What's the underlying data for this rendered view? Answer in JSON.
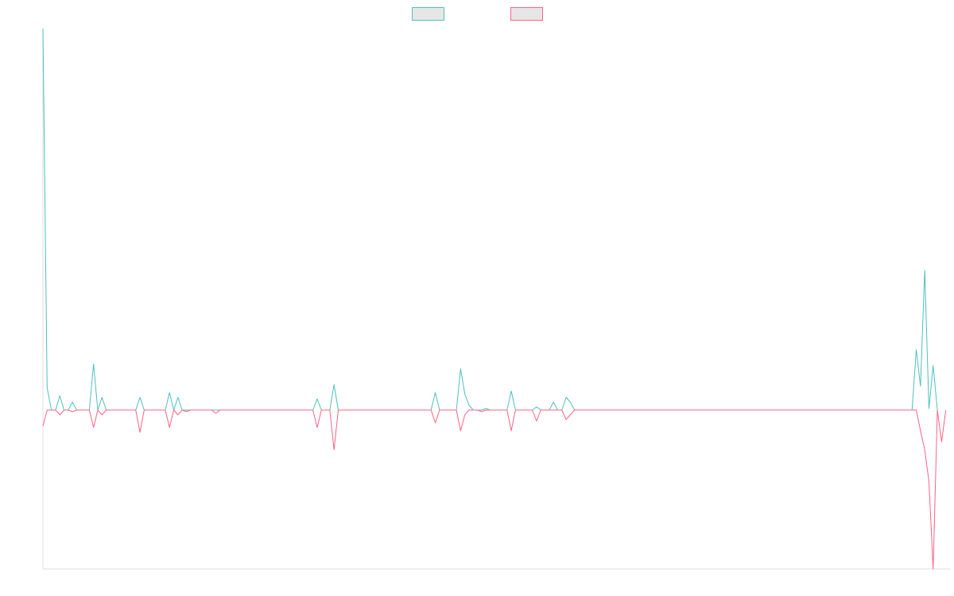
{
  "colors": {
    "background": "#ffffff",
    "axis": "#dddddd",
    "legend_fill": "#e6e6e6"
  },
  "chart_data": {
    "type": "line",
    "title": "",
    "xlabel": "",
    "ylabel": "",
    "grid": false,
    "legend_position": "top-center",
    "x_count": 216,
    "ylim": [
      -100,
      240
    ],
    "series": [
      {
        "color": "#4bc0c0",
        "values": [
          240,
          14,
          0,
          0,
          9,
          0,
          0,
          5,
          0,
          0,
          0,
          0,
          29,
          0,
          8,
          0,
          0,
          0,
          0,
          0,
          0,
          0,
          0,
          8,
          0,
          0,
          0,
          0,
          0,
          0,
          11,
          0,
          8,
          0,
          0,
          0,
          0,
          0,
          0,
          0,
          0,
          0,
          0,
          0,
          0,
          0,
          0,
          0,
          0,
          0,
          0,
          0,
          0,
          0,
          0,
          0,
          0,
          0,
          0,
          0,
          0,
          0,
          0,
          0,
          0,
          7,
          0,
          0,
          0,
          16,
          0,
          0,
          0,
          0,
          0,
          0,
          0,
          0,
          0,
          0,
          0,
          0,
          0,
          0,
          0,
          0,
          0,
          0,
          0,
          0,
          0,
          0,
          0,
          11,
          0,
          0,
          0,
          0,
          0,
          26,
          10,
          3,
          0,
          0,
          0,
          1,
          0,
          0,
          0,
          0,
          0,
          12,
          0,
          0,
          0,
          0,
          0,
          2,
          0,
          0,
          0,
          5,
          0,
          0,
          8,
          5,
          0,
          0,
          0,
          0,
          0,
          0,
          0,
          0,
          0,
          0,
          0,
          0,
          0,
          0,
          0,
          0,
          0,
          0,
          0,
          0,
          0,
          0,
          0,
          0,
          0,
          0,
          0,
          0,
          0,
          0,
          0,
          0,
          0,
          0,
          0,
          0,
          0,
          0,
          0,
          0,
          0,
          0,
          0,
          0,
          0,
          0,
          0,
          0,
          0,
          0,
          0,
          0,
          0,
          0,
          0,
          0,
          0,
          0,
          0,
          0,
          0,
          0,
          0,
          0,
          0,
          0,
          0,
          0,
          0,
          0,
          0,
          0,
          0,
          0,
          0,
          0,
          0,
          0,
          0,
          0,
          0,
          38,
          15,
          88,
          1,
          28,
          0
        ]
      },
      {
        "color": "#ff6384",
        "values": [
          -10,
          0,
          0,
          0,
          -3,
          0,
          0,
          -1,
          0,
          0,
          0,
          0,
          -11,
          0,
          -3,
          0,
          0,
          0,
          0,
          0,
          0,
          0,
          0,
          -14,
          0,
          0,
          0,
          0,
          0,
          0,
          -11,
          0,
          -3,
          0,
          -1,
          0,
          0,
          0,
          0,
          0,
          0,
          -2,
          0,
          0,
          0,
          0,
          0,
          0,
          0,
          0,
          0,
          0,
          0,
          0,
          0,
          0,
          0,
          0,
          0,
          0,
          0,
          0,
          0,
          0,
          0,
          -11,
          0,
          0,
          0,
          -25,
          0,
          0,
          0,
          0,
          0,
          0,
          0,
          0,
          0,
          0,
          0,
          0,
          0,
          0,
          0,
          0,
          0,
          0,
          0,
          0,
          0,
          0,
          0,
          -8,
          0,
          0,
          0,
          0,
          0,
          -13,
          -3,
          0,
          0,
          0,
          -1,
          0,
          0,
          0,
          0,
          0,
          0,
          -13,
          0,
          0,
          0,
          0,
          0,
          -7,
          0,
          0,
          0,
          0,
          0,
          0,
          -6,
          -3,
          0,
          0,
          0,
          0,
          0,
          0,
          0,
          0,
          0,
          0,
          0,
          0,
          0,
          0,
          0,
          0,
          0,
          0,
          0,
          0,
          0,
          0,
          0,
          0,
          0,
          0,
          0,
          0,
          0,
          0,
          0,
          0,
          0,
          0,
          0,
          0,
          0,
          0,
          0,
          0,
          0,
          0,
          0,
          0,
          0,
          0,
          0,
          0,
          0,
          0,
          0,
          0,
          0,
          0,
          0,
          0,
          0,
          0,
          0,
          0,
          0,
          0,
          0,
          0,
          0,
          0,
          0,
          0,
          0,
          0,
          0,
          0,
          0,
          0,
          0,
          0,
          0,
          0,
          0,
          0,
          0,
          0,
          -13,
          -25,
          -45,
          -100,
          0,
          -20,
          0
        ]
      }
    ]
  }
}
